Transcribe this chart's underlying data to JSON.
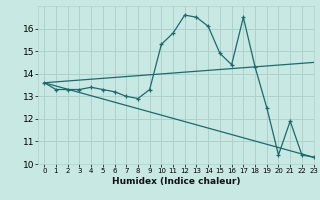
{
  "xlabel": "Humidex (Indice chaleur)",
  "ylabel": "",
  "xlim": [
    -0.5,
    23
  ],
  "ylim": [
    10,
    17
  ],
  "yticks": [
    10,
    11,
    12,
    13,
    14,
    15,
    16
  ],
  "xticks": [
    0,
    1,
    2,
    3,
    4,
    5,
    6,
    7,
    8,
    9,
    10,
    11,
    12,
    13,
    14,
    15,
    16,
    17,
    18,
    19,
    20,
    21,
    22,
    23
  ],
  "bg_color": "#c8e8e4",
  "grid_color": "#b0d0cc",
  "line_color": "#1a6b6b",
  "line1_x": [
    0,
    1,
    2,
    3,
    4,
    5,
    6,
    7,
    8,
    9,
    10,
    11,
    12,
    13,
    14,
    15,
    16,
    17,
    18,
    19,
    20,
    21,
    22,
    23
  ],
  "line1_y": [
    13.6,
    13.3,
    13.3,
    13.3,
    13.4,
    13.3,
    13.2,
    13.0,
    12.9,
    13.3,
    15.3,
    15.8,
    16.6,
    16.5,
    16.1,
    14.9,
    14.4,
    16.5,
    14.3,
    12.5,
    10.4,
    11.9,
    10.4,
    10.3
  ],
  "line2_x": [
    0,
    23
  ],
  "line2_y": [
    13.6,
    14.5
  ],
  "line3_x": [
    0,
    23
  ],
  "line3_y": [
    13.6,
    10.3
  ]
}
